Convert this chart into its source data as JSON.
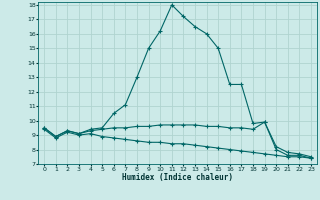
{
  "xlabel": "Humidex (Indice chaleur)",
  "background_color": "#cceae8",
  "grid_color": "#b0d4d0",
  "line_color": "#006666",
  "xlim": [
    -0.5,
    23.5
  ],
  "ylim": [
    7,
    18.2
  ],
  "xticks": [
    0,
    1,
    2,
    3,
    4,
    5,
    6,
    7,
    8,
    9,
    10,
    11,
    12,
    13,
    14,
    15,
    16,
    17,
    18,
    19,
    20,
    21,
    22,
    23
  ],
  "yticks": [
    7,
    8,
    9,
    10,
    11,
    12,
    13,
    14,
    15,
    16,
    17,
    18
  ],
  "line1_x": [
    0,
    1,
    2,
    3,
    4,
    5,
    6,
    7,
    8,
    9,
    10,
    11,
    12,
    13,
    14,
    15,
    16,
    17,
    18,
    19,
    20,
    21,
    22,
    23
  ],
  "line1_y": [
    9.5,
    8.9,
    9.3,
    9.1,
    9.4,
    9.5,
    10.5,
    11.1,
    13.0,
    15.0,
    16.2,
    18.0,
    17.2,
    16.5,
    16.0,
    15.0,
    12.5,
    12.5,
    9.8,
    9.9,
    8.0,
    7.6,
    7.6,
    7.4
  ],
  "line2_x": [
    0,
    1,
    2,
    3,
    4,
    5,
    6,
    7,
    8,
    9,
    10,
    11,
    12,
    13,
    14,
    15,
    16,
    17,
    18,
    19,
    20,
    21,
    22,
    23
  ],
  "line2_y": [
    9.5,
    8.9,
    9.3,
    9.1,
    9.3,
    9.4,
    9.5,
    9.5,
    9.6,
    9.6,
    9.7,
    9.7,
    9.7,
    9.7,
    9.6,
    9.6,
    9.5,
    9.5,
    9.4,
    9.9,
    8.2,
    7.8,
    7.7,
    7.5
  ],
  "line3_x": [
    0,
    1,
    2,
    3,
    4,
    5,
    6,
    7,
    8,
    9,
    10,
    11,
    12,
    13,
    14,
    15,
    16,
    17,
    18,
    19,
    20,
    21,
    22,
    23
  ],
  "line3_y": [
    9.4,
    8.8,
    9.2,
    9.0,
    9.1,
    8.9,
    8.8,
    8.7,
    8.6,
    8.5,
    8.5,
    8.4,
    8.4,
    8.3,
    8.2,
    8.1,
    8.0,
    7.9,
    7.8,
    7.7,
    7.6,
    7.5,
    7.5,
    7.4
  ]
}
